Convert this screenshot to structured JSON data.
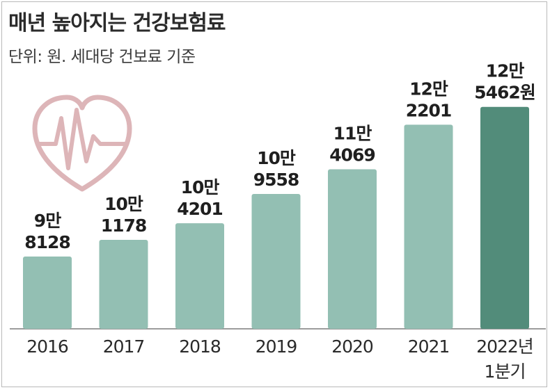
{
  "title": "매년 높아지는 건강보험료",
  "subtitle": "단위: 원. 세대당 건보료 기준",
  "colors": {
    "bar": "#93bfb3",
    "bar_highlight": "#528c7a",
    "heart_icon": "#ddb5b8",
    "label_text": "#1f1f1f",
    "axis": "#7b7b7b"
  },
  "chart_data": {
    "type": "bar",
    "title": "매년 높아지는 건강보험료",
    "subtitle": "단위: 원. 세대당 건보료 기준",
    "xlabel": "",
    "ylabel": "",
    "ylim": [
      0,
      140000
    ],
    "grid": false,
    "legend": "none",
    "categories": [
      "2016",
      "2017",
      "2018",
      "2019",
      "2020",
      "2021",
      "2022년 1분기"
    ],
    "values": [
      98128,
      101178,
      104201,
      109558,
      114069,
      122201,
      125462
    ],
    "data_labels": [
      [
        "9만",
        "8128"
      ],
      [
        "10만",
        "1178"
      ],
      [
        "10만",
        "4201"
      ],
      [
        "10만",
        "9558"
      ],
      [
        "11만",
        "4069"
      ],
      [
        "12만",
        "2201"
      ],
      [
        "12만",
        "5462원"
      ]
    ],
    "category_labels": [
      [
        "2016"
      ],
      [
        "2017"
      ],
      [
        "2018"
      ],
      [
        "2019"
      ],
      [
        "2020"
      ],
      [
        "2021"
      ],
      [
        "2022년",
        "1분기"
      ]
    ],
    "highlight_index": 6
  }
}
